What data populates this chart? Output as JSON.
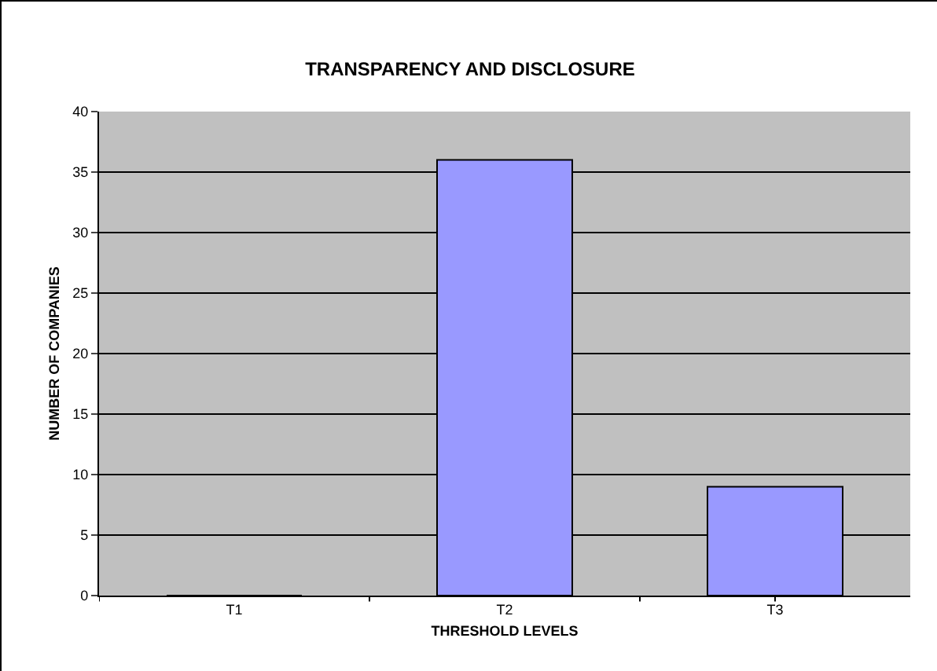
{
  "chart_data": {
    "type": "bar",
    "title": "TRANSPARENCY AND DISCLOSURE",
    "xlabel": "THRESHOLD LEVELS",
    "ylabel": "NUMBER OF COMPANIES",
    "categories": [
      "T1",
      "T2",
      "T3"
    ],
    "values": [
      0,
      36,
      9
    ],
    "color": "#9999ff",
    "ylim": [
      0,
      40
    ],
    "yticks": [
      0,
      5,
      10,
      15,
      20,
      25,
      30,
      35,
      40
    ],
    "grid": "y"
  }
}
